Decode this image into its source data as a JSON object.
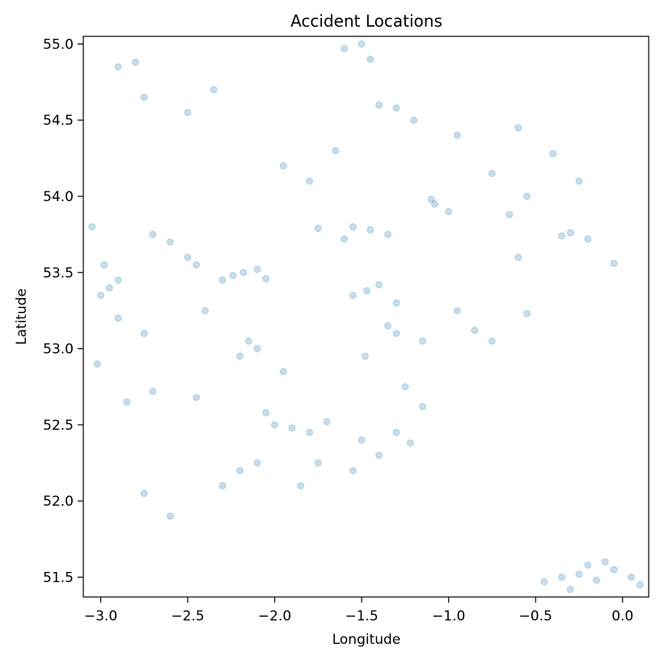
{
  "chart_data": {
    "type": "scatter",
    "title": "Accident Locations",
    "xlabel": "Longitude",
    "ylabel": "Latitude",
    "xlim": [
      -3.1,
      0.15
    ],
    "ylim": [
      51.37,
      55.05
    ],
    "xticks": [
      -3.0,
      -2.5,
      -2.0,
      -1.5,
      -1.0,
      -0.5,
      0.0
    ],
    "xtick_labels": [
      "−3.0",
      "−2.5",
      "−2.0",
      "−1.5",
      "−1.0",
      "−0.5",
      "0.0"
    ],
    "yticks": [
      51.5,
      52.0,
      52.5,
      53.0,
      53.5,
      54.0,
      54.5,
      55.0
    ],
    "ytick_labels": [
      "51.5",
      "52.0",
      "52.5",
      "53.0",
      "53.5",
      "54.0",
      "54.5",
      "55.0"
    ],
    "grid": false,
    "marker_color": "#1f77b4",
    "marker_alpha": 0.25,
    "series": [
      {
        "points": [
          [
            -2.24,
            53.48
          ],
          [
            -2.18,
            53.5
          ],
          [
            -2.3,
            53.45
          ],
          [
            -2.1,
            53.52
          ],
          [
            -2.05,
            53.46
          ],
          [
            -1.55,
            53.8
          ],
          [
            -1.45,
            53.78
          ],
          [
            -1.75,
            53.79
          ],
          [
            -1.6,
            53.72
          ],
          [
            -1.35,
            53.75
          ],
          [
            -1.47,
            53.38
          ],
          [
            -1.4,
            53.42
          ],
          [
            -1.55,
            53.35
          ],
          [
            -1.3,
            53.3
          ],
          [
            -1.9,
            52.48
          ],
          [
            -2.0,
            52.5
          ],
          [
            -1.8,
            52.45
          ],
          [
            -2.05,
            52.58
          ],
          [
            -1.7,
            52.52
          ],
          [
            -1.5,
            52.4
          ],
          [
            -1.4,
            52.3
          ],
          [
            -1.3,
            52.45
          ],
          [
            -1.22,
            52.38
          ],
          [
            -1.6,
            54.97
          ],
          [
            -1.5,
            55.0
          ],
          [
            -1.45,
            54.9
          ],
          [
            -1.4,
            54.6
          ],
          [
            -1.3,
            54.58
          ],
          [
            -2.95,
            53.4
          ],
          [
            -3.0,
            53.35
          ],
          [
            -2.98,
            53.55
          ],
          [
            -3.05,
            53.8
          ],
          [
            -2.9,
            53.45
          ],
          [
            -2.7,
            53.75
          ],
          [
            -2.6,
            53.7
          ],
          [
            -2.5,
            53.6
          ],
          [
            -2.45,
            53.55
          ],
          [
            -0.35,
            51.5
          ],
          [
            -0.25,
            51.52
          ],
          [
            -0.15,
            51.48
          ],
          [
            -0.05,
            51.55
          ],
          [
            0.05,
            51.5
          ],
          [
            -0.45,
            51.47
          ],
          [
            -0.3,
            51.42
          ],
          [
            -0.1,
            51.6
          ],
          [
            0.1,
            51.45
          ],
          [
            -0.2,
            51.58
          ],
          [
            -1.08,
            53.95
          ],
          [
            -1.1,
            53.98
          ],
          [
            -1.0,
            53.9
          ],
          [
            -0.35,
            53.74
          ],
          [
            -0.3,
            53.76
          ],
          [
            -0.2,
            53.72
          ],
          [
            -0.6,
            53.6
          ],
          [
            -0.05,
            53.56
          ],
          [
            -2.1,
            53.0
          ],
          [
            -2.15,
            53.05
          ],
          [
            -2.2,
            52.95
          ],
          [
            -1.95,
            52.85
          ],
          [
            -1.48,
            52.95
          ],
          [
            -1.3,
            53.1
          ],
          [
            -1.35,
            53.15
          ],
          [
            -1.15,
            53.05
          ],
          [
            -2.45,
            52.68
          ],
          [
            -2.7,
            52.72
          ],
          [
            -2.75,
            52.05
          ],
          [
            -2.6,
            51.9
          ],
          [
            -2.2,
            52.2
          ],
          [
            -2.1,
            52.25
          ],
          [
            -2.3,
            52.1
          ],
          [
            -2.8,
            54.88
          ],
          [
            -2.9,
            54.85
          ],
          [
            -2.75,
            54.65
          ],
          [
            -2.5,
            54.55
          ],
          [
            -2.35,
            54.7
          ],
          [
            -1.95,
            54.2
          ],
          [
            -1.8,
            54.1
          ],
          [
            -1.65,
            54.3
          ],
          [
            -1.2,
            54.5
          ],
          [
            -0.95,
            54.4
          ],
          [
            -0.6,
            54.45
          ],
          [
            -0.4,
            54.28
          ],
          [
            -0.25,
            54.1
          ],
          [
            -0.75,
            54.15
          ],
          [
            -0.55,
            54.0
          ],
          [
            -2.75,
            53.1
          ],
          [
            -2.9,
            53.2
          ],
          [
            -3.02,
            52.9
          ],
          [
            -2.85,
            52.65
          ],
          [
            -2.4,
            53.25
          ],
          [
            -1.75,
            52.25
          ],
          [
            -1.55,
            52.2
          ],
          [
            -1.85,
            52.1
          ],
          [
            -1.25,
            52.75
          ],
          [
            -1.15,
            52.62
          ],
          [
            -0.95,
            53.25
          ],
          [
            -0.75,
            53.05
          ],
          [
            -0.85,
            53.12
          ],
          [
            -0.55,
            53.23
          ],
          [
            -0.65,
            53.88
          ]
        ]
      }
    ]
  }
}
